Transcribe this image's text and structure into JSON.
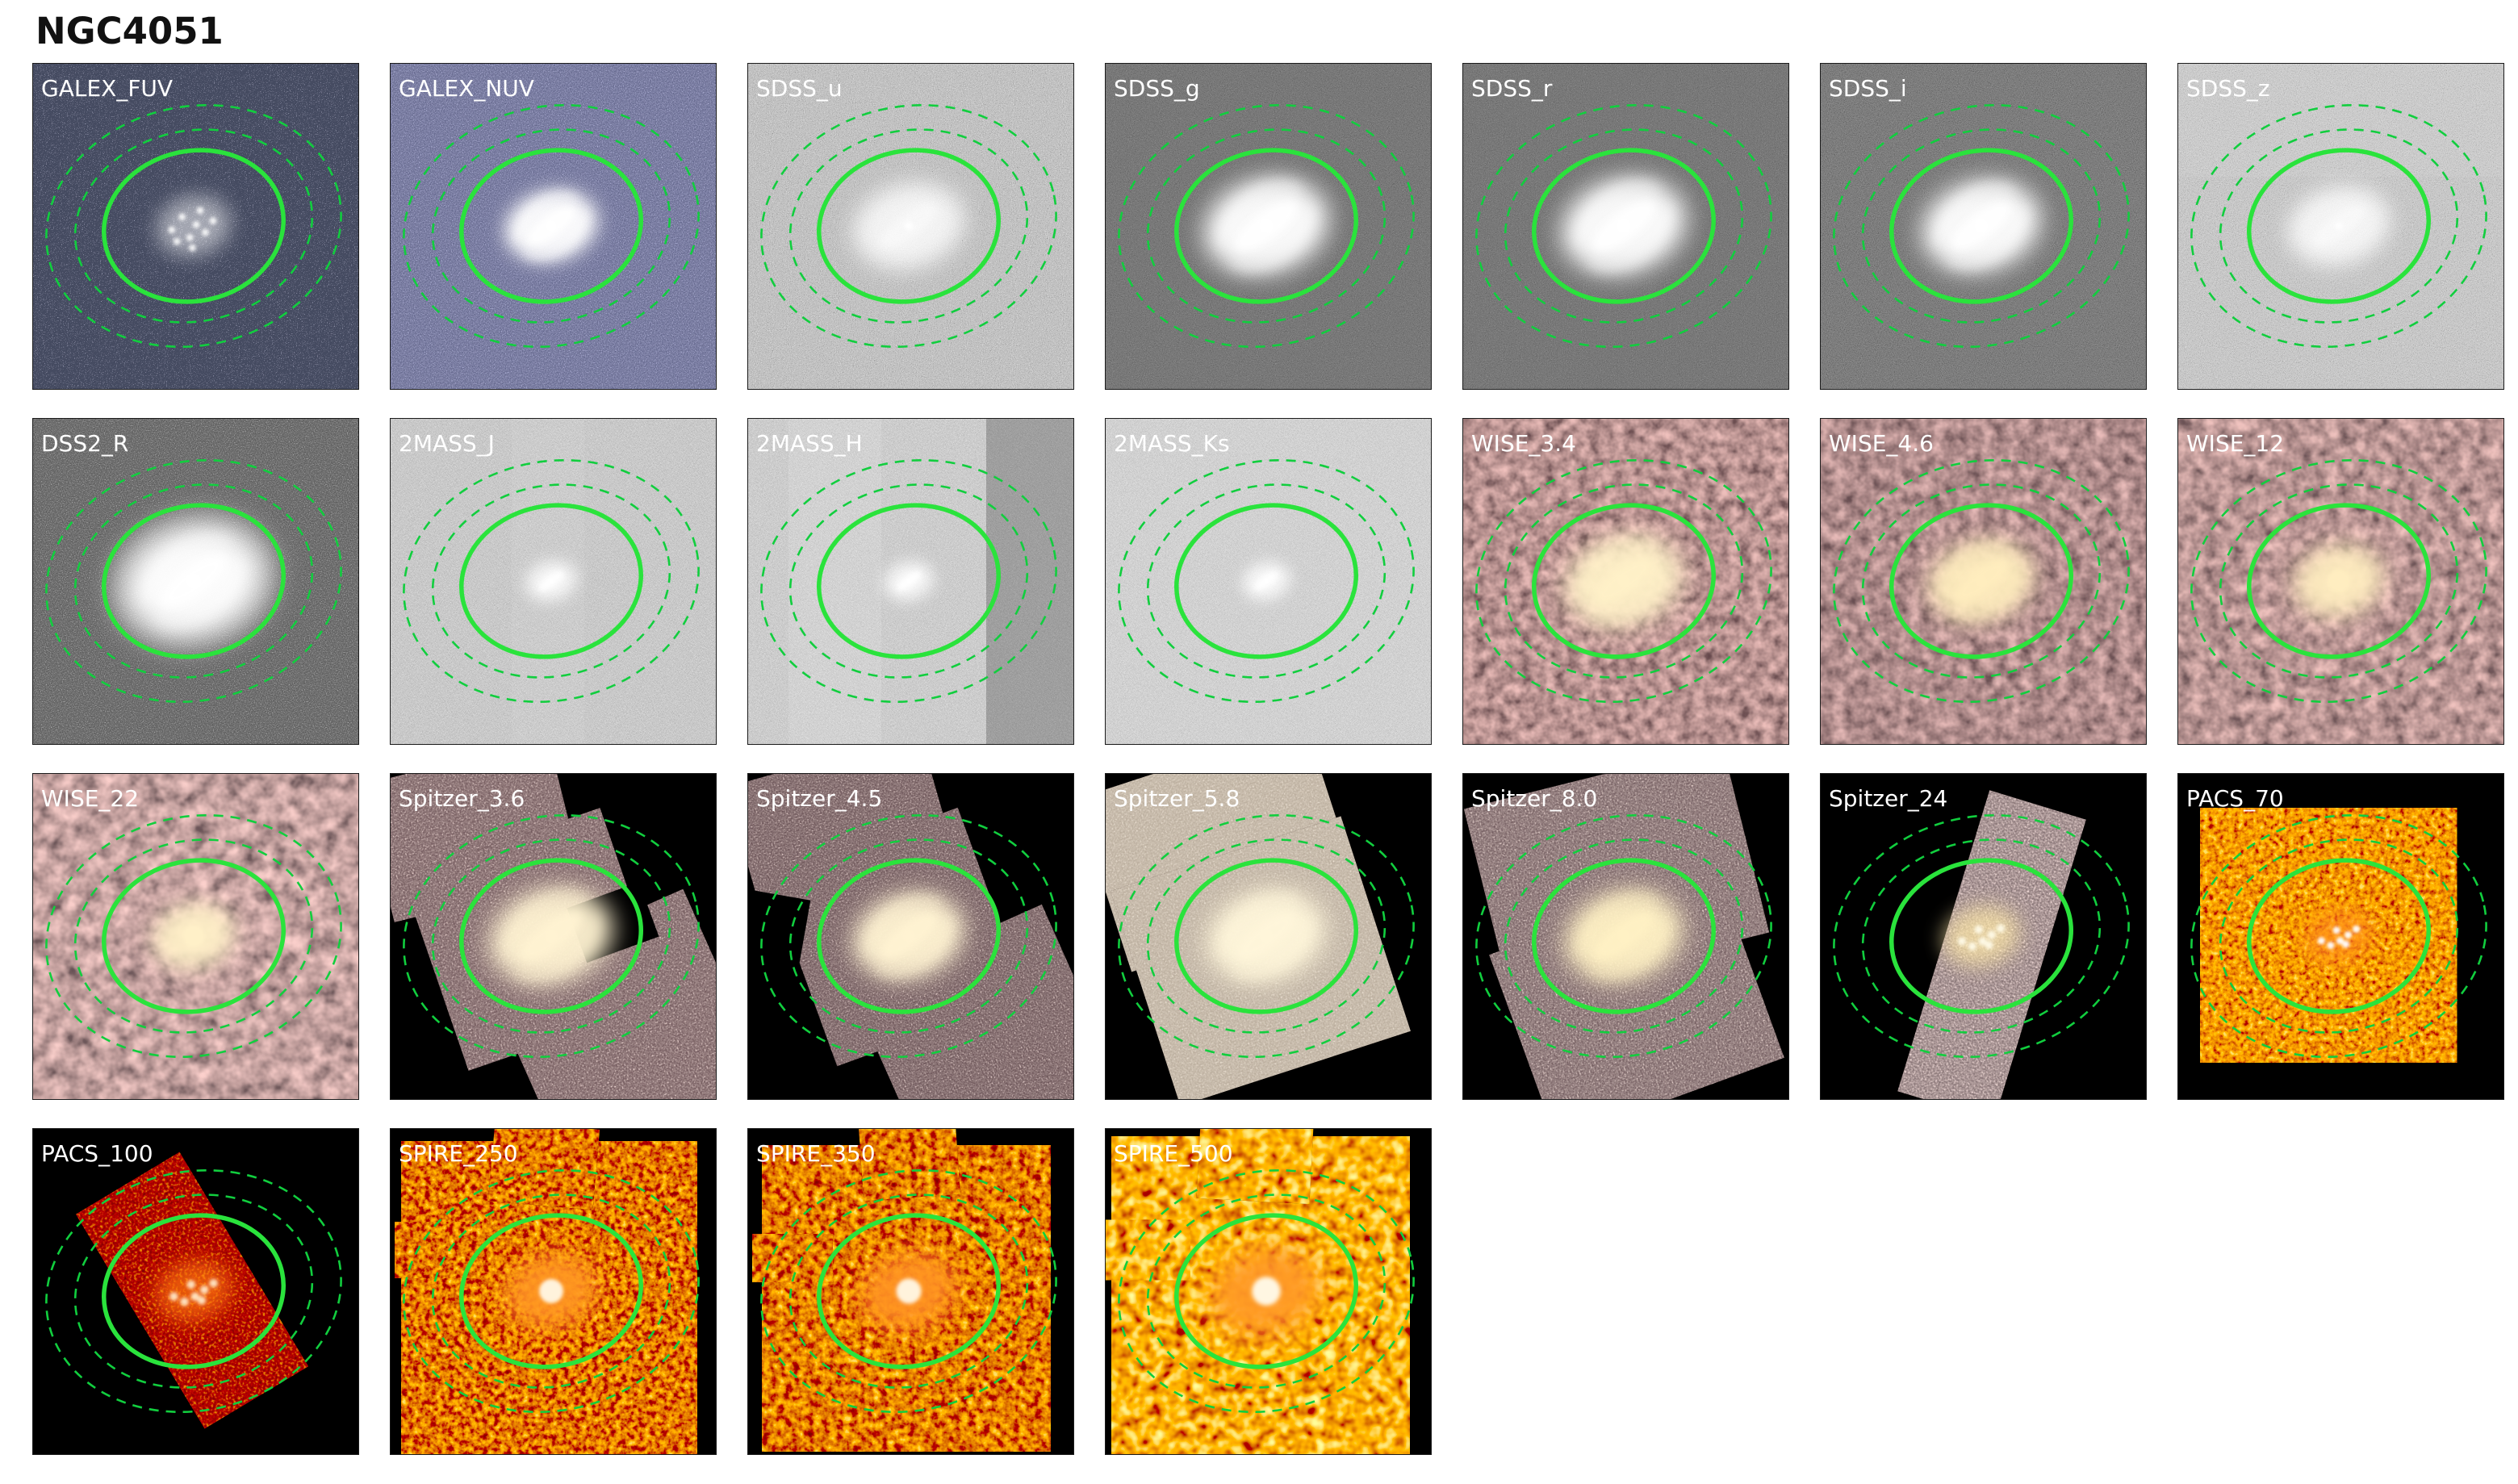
{
  "title": "NGC4051",
  "grid": {
    "columns": 7,
    "rows": 4,
    "panel_count": 25
  },
  "overlay": {
    "solid_ellipse_color": "#2ae33c",
    "dashed_ellipse_color": "#11ce3e",
    "label_color": "#ffffff"
  },
  "panels": [
    {
      "label": "GALEX_FUV"
    },
    {
      "label": "GALEX_NUV"
    },
    {
      "label": "SDSS_u"
    },
    {
      "label": "SDSS_g"
    },
    {
      "label": "SDSS_r"
    },
    {
      "label": "SDSS_i"
    },
    {
      "label": "SDSS_z"
    },
    {
      "label": "DSS2_R"
    },
    {
      "label": "2MASS_J"
    },
    {
      "label": "2MASS_H"
    },
    {
      "label": "2MASS_Ks"
    },
    {
      "label": "WISE_3.4"
    },
    {
      "label": "WISE_4.6"
    },
    {
      "label": "WISE_12"
    },
    {
      "label": "WISE_22"
    },
    {
      "label": "Spitzer_3.6"
    },
    {
      "label": "Spitzer_4.5"
    },
    {
      "label": "Spitzer_5.8"
    },
    {
      "label": "Spitzer_8.0"
    },
    {
      "label": "Spitzer_24"
    },
    {
      "label": "PACS_70"
    },
    {
      "label": "PACS_100"
    },
    {
      "label": "SPIRE_250"
    },
    {
      "label": "SPIRE_350"
    },
    {
      "label": "SPIRE_500"
    }
  ],
  "band_styles": {
    "GALEX_FUV": {
      "bg": "#060609",
      "noise": {
        "freq": 0.9,
        "oct": 2,
        "ttype": "table",
        "tvals": "0 0 0 0 0.75 1",
        "tint": "0.8 0 0 0 0.06 0.8 0 0 0 0.07 1 0 0 0 0.12 0 0 0 0 1",
        "op": 1
      },
      "galaxy": {
        "kind": "patchy",
        "s": 0.8,
        "glow": "#ffffff"
      }
    },
    "GALEX_NUV": {
      "bg": "#10101c",
      "noise": {
        "freq": 0.85,
        "oct": 2,
        "ttype": "table",
        "tvals": "0 0.06 0.16 0.32 0.8 1",
        "tint": "0.62 0 0 0 0.05 0.62 0 0 0 0.06 0.85 0 0 0 0.16 0 0 0 0 1",
        "op": 1
      },
      "galaxy": {
        "kind": "spiral",
        "s": 0.75,
        "glow": "#ffffff"
      }
    },
    "SDSS_u": {
      "bg": "#8e8e8e",
      "noise": {
        "freq": 0.95,
        "oct": 3,
        "ttype": "discrete",
        "tvals": "0.05 0.4 0.55 0.7 0.95",
        "tint": null,
        "op": 0.95
      },
      "galaxy": {
        "kind": "diffuse",
        "s": 0.9,
        "glow": "#ffffff"
      }
    },
    "SDSS_g": {
      "bg": "#262626",
      "noise": {
        "freq": 0.95,
        "oct": 3,
        "ttype": "discrete",
        "tvals": "0.08 0.16 0.22 0.3 0.5",
        "tint": null,
        "op": 0.9
      },
      "galaxy": {
        "kind": "spiral",
        "s": 1,
        "glow": "#ffffff"
      }
    },
    "SDSS_r": {
      "bg": "#2a2a2a",
      "noise": {
        "freq": 0.95,
        "oct": 3,
        "ttype": "discrete",
        "tvals": "0.08 0.16 0.22 0.3 0.5",
        "tint": null,
        "op": 0.9
      },
      "galaxy": {
        "kind": "spiral",
        "s": 1,
        "glow": "#ffffff"
      }
    },
    "SDSS_i": {
      "bg": "#2c2c2c",
      "noise": {
        "freq": 0.95,
        "oct": 3,
        "ttype": "discrete",
        "tvals": "0.08 0.16 0.24 0.32 0.52",
        "tint": null,
        "op": 0.9
      },
      "galaxy": {
        "kind": "spiral",
        "s": 0.95,
        "glow": "#ffffff"
      }
    },
    "SDSS_z": {
      "bg": "#8a8a8a",
      "noise": {
        "freq": 0.95,
        "oct": 3,
        "ttype": "discrete",
        "tvals": "0.25 0.45 0.6 0.72 0.95",
        "tint": null,
        "op": 0.95
      },
      "galaxy": {
        "kind": "diffuse",
        "s": 0.82,
        "glow": "#ffffff"
      }
    },
    "DSS2_R": {
      "bg": "#1d1d1d",
      "noise": {
        "freq": 0.85,
        "oct": 2,
        "ttype": "table",
        "tvals": "0 0.08 0.12 0.2 0.55 1",
        "tint": null,
        "op": 1
      },
      "galaxy": {
        "kind": "spiral",
        "s": 1.05,
        "glow": "#ffffff",
        "halo": true
      }
    },
    "2MASS_J": {
      "bg": "#9a9a9a",
      "noise": {
        "freq": 1.0,
        "oct": 3,
        "ttype": "discrete",
        "tvals": "0.15 0.45 0.6 0.78 1",
        "tint": null,
        "op": 0.95
      },
      "galaxy": {
        "kind": "bar",
        "s": 0.62,
        "glow": "#ffffff"
      }
    },
    "2MASS_H": {
      "bg": "#a0a0a0",
      "noise": {
        "freq": 1.0,
        "oct": 3,
        "ttype": "discrete",
        "tvals": "0.18 0.48 0.62 0.8 1",
        "tint": null,
        "op": 0.95
      },
      "galaxy": {
        "kind": "bar",
        "s": 0.6,
        "glow": "#ffffff"
      }
    },
    "2MASS_Ks": {
      "bg": "#ababab",
      "noise": {
        "freq": 1.0,
        "oct": 3,
        "ttype": "discrete",
        "tvals": "0.2 0.5 0.66 0.8 1",
        "tint": null,
        "op": 0.95
      },
      "galaxy": {
        "kind": "bar",
        "s": 0.58,
        "glow": "#ffffff"
      }
    },
    "WISE_3.4": {
      "bg": "#1c0507",
      "noise": {
        "freq": 0.07,
        "oct": 3,
        "ttype": "table",
        "tvals": "0 0.12 0.45 0.8 1",
        "tint": "0.95 0 0 0 0.06 0.6 0 0 0 0.02 0.56 0 0 0 0.03 0 0 0 0 1",
        "op": 1
      },
      "galaxy": {
        "kind": "spiral",
        "s": 0.95,
        "glow": "#fff1c8"
      }
    },
    "WISE_4.6": {
      "bg": "#1c0507",
      "noise": {
        "freq": 0.065,
        "oct": 3,
        "ttype": "table",
        "tvals": "0 0.12 0.42 0.78 1",
        "tint": "0.92 0 0 0 0.05 0.58 0 0 0 0.02 0.55 0 0 0 0.03 0 0 0 0 1",
        "op": 1
      },
      "galaxy": {
        "kind": "spiral",
        "s": 0.85,
        "glow": "#ffedbe"
      }
    },
    "WISE_12": {
      "bg": "#1e0608",
      "noise": {
        "freq": 0.06,
        "oct": 3,
        "ttype": "table",
        "tvals": "0 0.12 0.45 0.82 1",
        "tint": "0.95 0 0 0 0.06 0.6 0 0 0 0.03 0.56 0 0 0 0.04 0 0 0 0 1",
        "op": 1
      },
      "galaxy": {
        "kind": "blob",
        "s": 0.85,
        "glow": "#ffedc0"
      }
    },
    "WISE_22": {
      "bg": "#1e0608",
      "noise": {
        "freq": 0.05,
        "oct": 3,
        "ttype": "table",
        "tvals": "0 0.1 0.5 0.9 1",
        "tint": "0.98 0 0 0 0.07 0.64 0 0 0 0.04 0.6 0 0 0 0.05 0 0 0 0 1",
        "op": 1
      },
      "galaxy": {
        "kind": "blob",
        "s": 0.78,
        "glow": "#fff0c8"
      }
    },
    "Spitzer_3.6": {
      "bg": "#000000",
      "noise": {
        "freq": 0.5,
        "oct": 2,
        "ttype": "table",
        "tvals": "0 0 0.06 0.22 0.9 1",
        "tint": "0.9 0 0 0 0.16 0.75 0 0 0 0.09 0.7 0 0 0 0.1 0 0 0 0 1",
        "op": 1
      },
      "galaxy": {
        "kind": "spiral",
        "s": 1,
        "glow": "#fff3d2"
      }
    },
    "Spitzer_4.5": {
      "bg": "#000000",
      "noise": {
        "freq": 0.55,
        "oct": 2,
        "ttype": "table",
        "tvals": "0 0 0.05 0.2 0.88 1",
        "tint": "0.9 0 0 0 0.14 0.75 0 0 0 0.08 0.7 0 0 0 0.09 0 0 0 0 1",
        "op": 1
      },
      "galaxy": {
        "kind": "spiral",
        "s": 0.9,
        "glow": "#fff3d2"
      }
    },
    "Spitzer_5.8": {
      "bg": "#000000",
      "noise": {
        "freq": 0.5,
        "oct": 2,
        "ttype": "table",
        "tvals": "0 0.05 0.15 0.35 0.9 1",
        "tint": "0.5 0 0 0 0.45 0.48 0 0 0 0.38 0.45 0 0 0 0.3 0 0 0 0 1",
        "op": 1
      },
      "galaxy": {
        "kind": "spiral",
        "s": 0.95,
        "glow": "#fff6da"
      }
    },
    "Spitzer_8.0": {
      "bg": "#000000",
      "noise": {
        "freq": 0.5,
        "oct": 2,
        "ttype": "table",
        "tvals": "0 0 0.08 0.25 0.9 1",
        "tint": "0.92 0 0 0 0.15 0.78 0 0 0 0.09 0.72 0 0 0 0.1 0 0 0 0 1",
        "op": 1
      },
      "galaxy": {
        "kind": "spiral",
        "s": 0.95,
        "glow": "#fff1c4"
      }
    },
    "Spitzer_24": {
      "bg": "#000000",
      "noise": {
        "freq": 0.45,
        "oct": 2,
        "ttype": "table",
        "tvals": "0 0.05 0.18 0.4 0.95 1",
        "tint": "0.92 0 0 0 0.14 0.76 0 0 0 0.09 0.72 0 0 0 0.1 0 0 0 0 1",
        "op": 1
      },
      "galaxy": {
        "kind": "knots",
        "s": 0.8,
        "glow": "#ffe9a8",
        "knot": "#fffbe8"
      }
    },
    "PACS_70": {
      "bg": "#000000",
      "noise": {
        "freq": 0.16,
        "oct": 3,
        "ttype": "table",
        "tvals": "0 0.25 0.55 0.85 1",
        "tint": "1.6 0 0 0 0.04 1.35 0 0 0 -0.42 1 0 0 0 -0.72 0 0 0 0 1",
        "op": 1
      },
      "galaxy": {
        "kind": "knots",
        "s": 0.72,
        "glow": "#ff8c1e",
        "knot": "#ffffff"
      }
    },
    "PACS_100": {
      "bg": "#000000",
      "noise": {
        "freq": 0.3,
        "oct": 2,
        "ttype": "table",
        "tvals": "0 0.1 0.3 0.55 1",
        "tint": "1.5 0 0 0 0.02 1.3 0 0 0 -0.45 1 0 0 0 -0.75 0 0 0 0 1",
        "op": 1
      },
      "galaxy": {
        "kind": "knots",
        "s": 0.82,
        "glow": "#ff7a10",
        "knot": "#ffe8c8"
      }
    },
    "SPIRE_250": {
      "bg": "#000000",
      "noise": {
        "freq": 0.14,
        "oct": 3,
        "ttype": "table",
        "tvals": "0 0.15 0.45 0.8 1",
        "tint": "1.6 0 0 0 0.04 1.35 0 0 0 -0.42 1 0 0 0 -0.72 0 0 0 0 1",
        "op": 1
      },
      "galaxy": {
        "kind": "blob",
        "s": 0.88,
        "glow": "#ff9622",
        "core": "#fff3dc"
      }
    },
    "SPIRE_350": {
      "bg": "#000000",
      "noise": {
        "freq": 0.11,
        "oct": 3,
        "ttype": "table",
        "tvals": "0 0.15 0.45 0.8 1",
        "tint": "1.6 0 0 0 0.05 1.35 0 0 0 -0.4 1 0 0 0 -0.7 0 0 0 0 1",
        "op": 1
      },
      "galaxy": {
        "kind": "blob",
        "s": 0.92,
        "glow": "#ff9320",
        "core": "#fff3dc"
      }
    },
    "SPIRE_500": {
      "bg": "#000000",
      "noise": {
        "freq": 0.07,
        "oct": 2,
        "ttype": "table",
        "tvals": "0 0.2 0.55 0.9 1",
        "tint": "1.7 0 0 0 0.08 1.5 0 0 0 -0.38 1.1 0 0 0 -0.68 0 0 0 0 1",
        "op": 1
      },
      "galaxy": {
        "kind": "blob",
        "s": 1.05,
        "glow": "#ff9a28",
        "core": "#fff6e2"
      }
    }
  }
}
